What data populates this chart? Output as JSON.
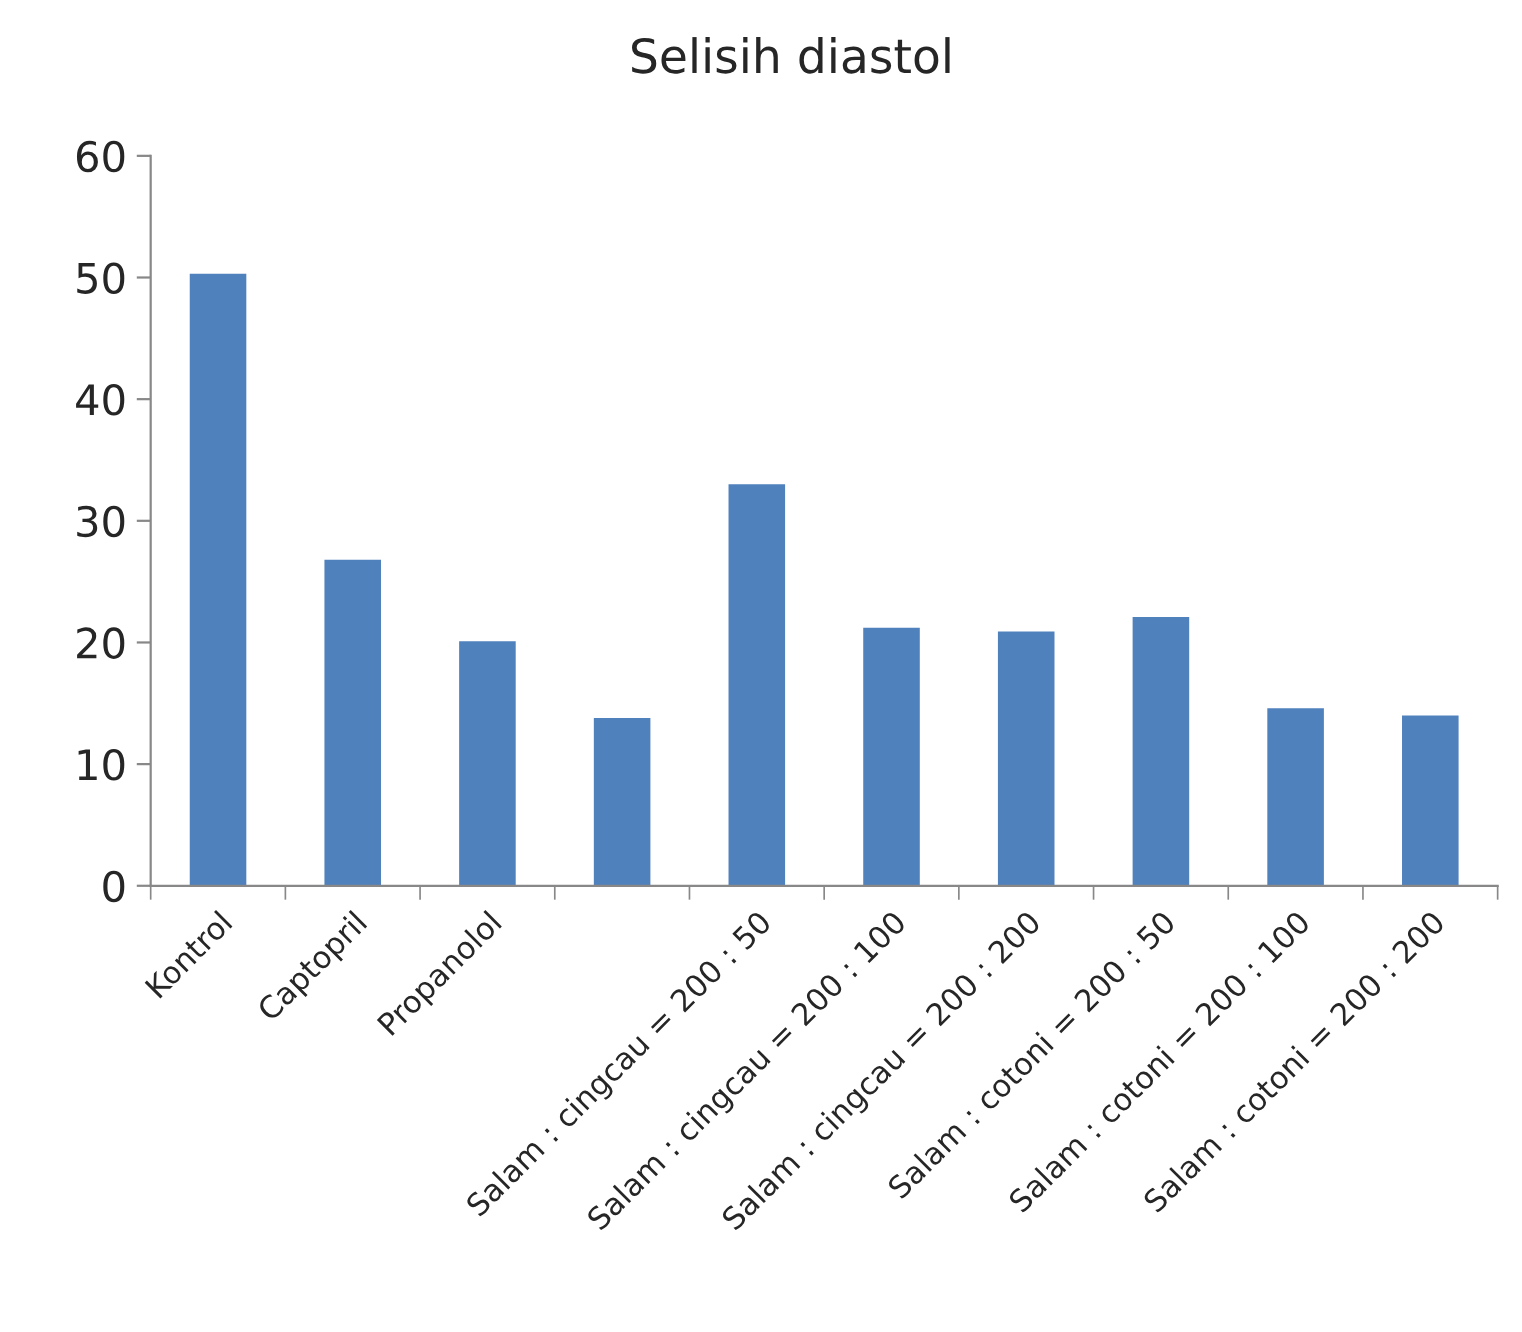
{
  "chart_data": {
    "type": "bar",
    "title": "Selisih diastol",
    "categories": [
      "Kontrol",
      "Captopril",
      "Propanolol",
      null,
      "Salam : cingcau = 200 : 50",
      "Salam : cingcau = 200 : 100",
      "Salam : cingcau = 200 : 200",
      "Salam : cotoni = 200 : 50",
      "Salam : cotoni = 200 : 100",
      "Salam : cotoni = 200 : 200"
    ],
    "values": [
      50.3,
      26.8,
      20.1,
      13.8,
      33.0,
      21.2,
      20.9,
      22.1,
      14.6,
      14.0
    ],
    "color": "#4f81bd",
    "ylim": [
      0,
      60
    ],
    "yticks": [
      0,
      10,
      20,
      30,
      40,
      50,
      60
    ],
    "grid": false,
    "legend": false
  }
}
